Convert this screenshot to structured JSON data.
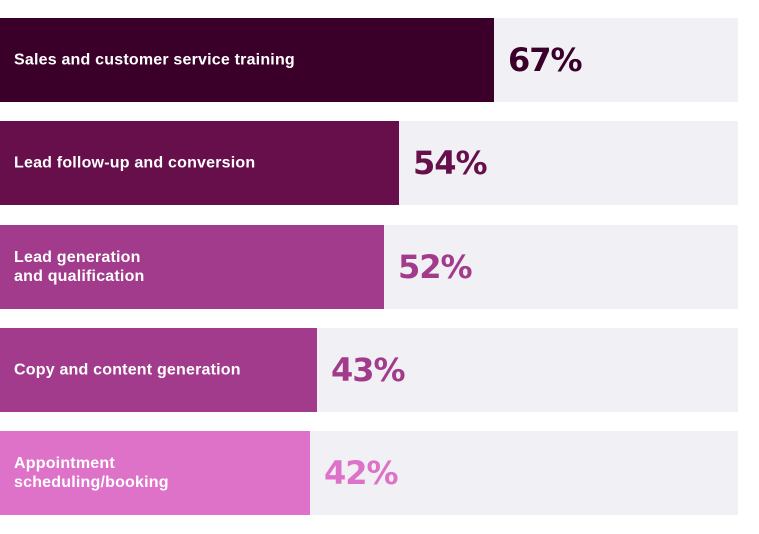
{
  "chart_data": {
    "type": "bar",
    "orientation": "horizontal",
    "xlim": [
      0,
      100
    ],
    "categories": [
      "Sales and customer service training",
      "Lead follow-up and conversion",
      "Lead generation\nand qualification",
      "Copy and content generation",
      "Appointment\nscheduling/booking"
    ],
    "values": [
      67,
      54,
      52,
      43,
      42
    ],
    "value_labels": [
      "67%",
      "54%",
      "52%",
      "43%",
      "42%"
    ],
    "bar_colors": [
      "#3a0029",
      "#660f4b",
      "#a23b8c",
      "#a23b8c",
      "#de72c8"
    ],
    "label_colors": [
      "#3a0029",
      "#660f4b",
      "#a23b8c",
      "#a23b8c",
      "#de72c8"
    ],
    "track_color": "#f0f0f5"
  }
}
